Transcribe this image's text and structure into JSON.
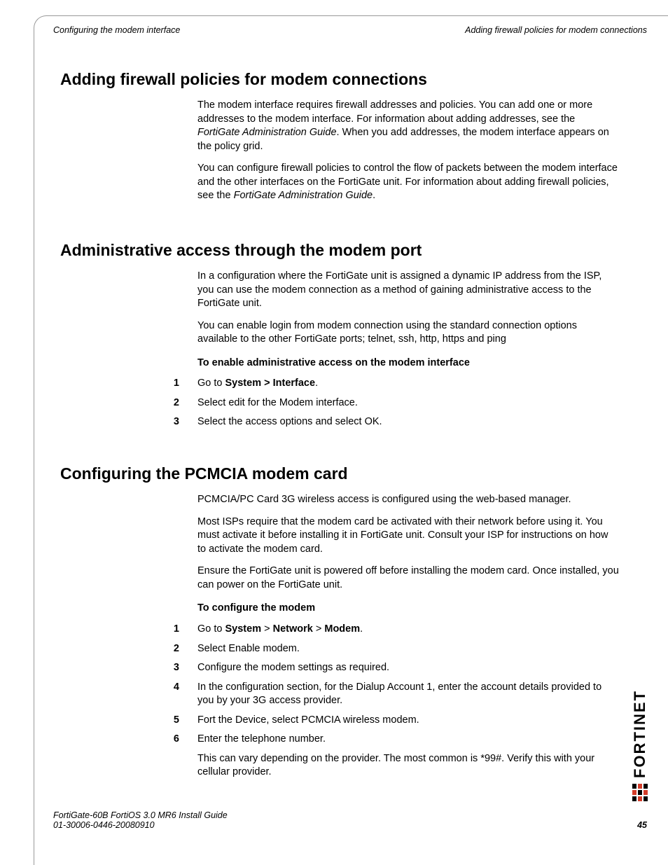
{
  "header": {
    "left": "Configuring the modem interface",
    "right": "Adding firewall policies for modem connections"
  },
  "sections": [
    {
      "title": "Adding firewall policies for modem connections",
      "paras": [
        {
          "segments": [
            {
              "t": "The modem interface requires firewall addresses and policies. You can add one or more addresses to the modem interface. For information about adding addresses, see the "
            },
            {
              "t": "FortiGate Administration Guide",
              "i": true
            },
            {
              "t": ". When you add addresses, the modem interface appears on the policy grid."
            }
          ]
        },
        {
          "segments": [
            {
              "t": "You can configure firewall policies to control the flow of packets between the modem interface and the other interfaces on the FortiGate unit. For information about adding firewall policies, see the "
            },
            {
              "t": "FortiGate Administration Guide",
              "i": true
            },
            {
              "t": "."
            }
          ]
        }
      ]
    },
    {
      "title": "Administrative access through the modem port",
      "paras": [
        {
          "segments": [
            {
              "t": "In a configuration where the FortiGate unit is assigned a dynamic IP address from the ISP, you can use the modem connection as a method of gaining administrative access to the FortiGate unit."
            }
          ]
        },
        {
          "segments": [
            {
              "t": "You can enable login from modem connection using the standard connection options available to the other FortiGate ports; telnet, ssh, http, https and ping"
            }
          ]
        }
      ],
      "subhead": "To enable administrative access on the modem interface",
      "steps": [
        {
          "n": "1",
          "segments": [
            {
              "t": "Go to "
            },
            {
              "t": "System > Interface",
              "b": true
            },
            {
              "t": "."
            }
          ]
        },
        {
          "n": "2",
          "segments": [
            {
              "t": "Select edit for the Modem interface."
            }
          ]
        },
        {
          "n": "3",
          "segments": [
            {
              "t": "Select the access options and select OK."
            }
          ]
        }
      ]
    },
    {
      "title": "Configuring the PCMCIA modem card",
      "paras": [
        {
          "segments": [
            {
              "t": "PCMCIA/PC Card 3G wireless access is configured using the web-based manager."
            }
          ]
        },
        {
          "segments": [
            {
              "t": "Most ISPs require that the modem card be activated with their network before using it. You must activate it before installing it in FortiGate unit. Consult your ISP for instructions on how to activate the modem card."
            }
          ]
        },
        {
          "segments": [
            {
              "t": "Ensure the FortiGate unit is powered off before installing the modem card. Once installed, you can power on the FortiGate unit."
            }
          ]
        }
      ],
      "subhead": "To configure the modem",
      "steps": [
        {
          "n": "1",
          "segments": [
            {
              "t": "Go to "
            },
            {
              "t": "System",
              "b": true
            },
            {
              "t": " > "
            },
            {
              "t": "Network",
              "b": true
            },
            {
              "t": " > "
            },
            {
              "t": "Modem",
              "b": true
            },
            {
              "t": "."
            }
          ]
        },
        {
          "n": "2",
          "segments": [
            {
              "t": "Select Enable modem."
            }
          ]
        },
        {
          "n": "3",
          "segments": [
            {
              "t": "Configure the modem settings as required."
            }
          ]
        },
        {
          "n": "4",
          "segments": [
            {
              "t": "In the configuration section, for the Dialup Account 1, enter the account details provided to you by your 3G access provider."
            }
          ]
        },
        {
          "n": "5",
          "segments": [
            {
              "t": "Fort the Device, select PCMCIA wireless modem."
            }
          ]
        },
        {
          "n": "6",
          "segments": [
            {
              "t": "Enter the telephone number."
            }
          ],
          "sub": "This can vary depending on the provider. The most common is *99#. Verify this with your cellular provider."
        }
      ]
    }
  ],
  "footer": {
    "line1": "FortiGate-60B FortiOS 3.0 MR6 Install Guide",
    "line2": "01-30006-0446-20080910",
    "page": "45"
  },
  "brand": {
    "text": "FORTINET",
    "logo_color": "#d43d2a",
    "logo_bg": "#000000"
  }
}
